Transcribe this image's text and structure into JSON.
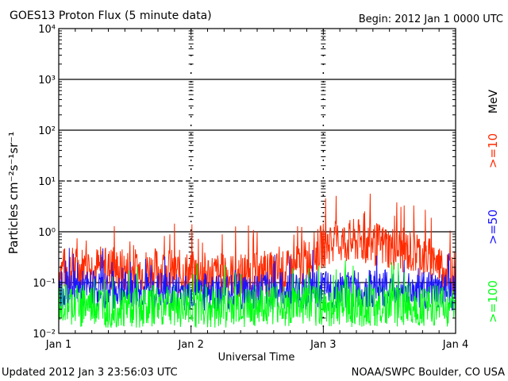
{
  "chart_data": {
    "type": "line",
    "title": "GOES13 Proton Flux (5 minute data)",
    "begin_label": "Begin: 2012 Jan 1 0000 UTC",
    "xlabel": "Universal Time",
    "ylabel": "Particles cm⁻²s⁻¹sr⁻¹",
    "y_scale": "log",
    "ylim": [
      0.01,
      10000
    ],
    "y_ticks": [
      {
        "value": 0.01,
        "label": "10⁻²"
      },
      {
        "value": 0.1,
        "label": "10⁻¹"
      },
      {
        "value": 1,
        "label": "10⁰"
      },
      {
        "value": 10,
        "label": "10¹"
      },
      {
        "value": 100,
        "label": "10²"
      },
      {
        "value": 1000,
        "label": "10³"
      },
      {
        "value": 10000,
        "label": "10⁴"
      }
    ],
    "solid_lines": [
      0.1,
      1,
      100,
      1000
    ],
    "dashed_lines": [
      10
    ],
    "x_ticks": [
      {
        "day": 0,
        "label": "Jan 1"
      },
      {
        "day": 1,
        "label": "Jan 2"
      },
      {
        "day": 2,
        "label": "Jan 3"
      },
      {
        "day": 3,
        "label": "Jan 4"
      }
    ],
    "xlim": [
      0,
      3
    ],
    "x_unit": "days",
    "unit_label": "MeV",
    "series": [
      {
        "name": ">=10",
        "color": "#ff2a00",
        "x": [
          0,
          0.25,
          0.5,
          0.75,
          1.0,
          1.25,
          1.5,
          1.75,
          1.9,
          2.0,
          2.1,
          2.25,
          2.5,
          2.75,
          2.9,
          3.0
        ],
        "y": [
          0.18,
          0.2,
          0.17,
          0.18,
          0.15,
          0.14,
          0.14,
          0.16,
          0.3,
          0.55,
          0.6,
          0.65,
          0.5,
          0.35,
          0.2,
          0.16
        ]
      },
      {
        "name": ">=50",
        "color": "#1a14ff",
        "x": [
          0,
          0.25,
          0.5,
          0.75,
          1.0,
          1.25,
          1.5,
          1.75,
          2.0,
          2.25,
          2.5,
          2.75,
          3.0
        ],
        "y": [
          0.07,
          0.075,
          0.07,
          0.07,
          0.065,
          0.065,
          0.07,
          0.07,
          0.07,
          0.075,
          0.075,
          0.07,
          0.06
        ]
      },
      {
        "name": ">=100",
        "color": "#00ff12",
        "x": [
          0,
          0.25,
          0.5,
          0.75,
          1.0,
          1.25,
          1.5,
          1.75,
          2.0,
          2.25,
          2.5,
          2.75,
          3.0
        ],
        "y": [
          0.035,
          0.035,
          0.033,
          0.035,
          0.034,
          0.034,
          0.035,
          0.035,
          0.034,
          0.035,
          0.036,
          0.035,
          0.034
        ]
      }
    ]
  },
  "footer": {
    "updated": "Updated 2012 Jan  3 23:56:03 UTC",
    "credit": "NOAA/SWPC Boulder, CO USA"
  }
}
